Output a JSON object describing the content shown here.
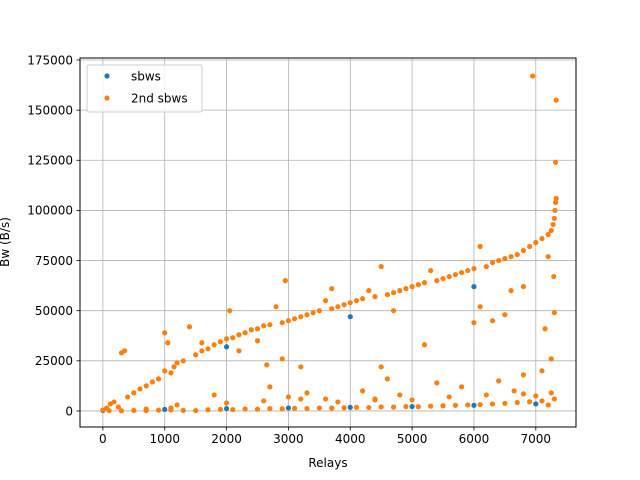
{
  "chart_data": {
    "type": "scatter",
    "title": "",
    "xlabel": "Relays",
    "ylabel": "Bw (B/s)",
    "xlim": [
      -370,
      7650
    ],
    "ylim": [
      -8000,
      176000
    ],
    "xticks": [
      0,
      1000,
      2000,
      3000,
      4000,
      5000,
      6000,
      7000
    ],
    "yticks": [
      0,
      25000,
      50000,
      75000,
      100000,
      125000,
      150000,
      175000
    ],
    "grid": true,
    "legend_position": "top-left",
    "series": [
      {
        "name": "sbws",
        "color": "#1f77b4",
        "points": [
          [
            0,
            200
          ],
          [
            1000,
            800
          ],
          [
            2000,
            1200
          ],
          [
            3000,
            1500
          ],
          [
            4000,
            1800
          ],
          [
            5000,
            2200
          ],
          [
            6000,
            2800
          ],
          [
            7000,
            3500
          ],
          [
            2000,
            32000
          ],
          [
            4000,
            47000
          ],
          [
            6000,
            62000
          ]
        ]
      },
      {
        "name": "2nd sbws",
        "color": "#ff7f0e",
        "points": [
          [
            0,
            500
          ],
          [
            60,
            1500
          ],
          [
            120,
            3500
          ],
          [
            180,
            4500
          ],
          [
            250,
            2000
          ],
          [
            300,
            29000
          ],
          [
            350,
            30000
          ],
          [
            400,
            7000
          ],
          [
            500,
            9000
          ],
          [
            600,
            11000
          ],
          [
            700,
            12500
          ],
          [
            800,
            14500
          ],
          [
            900,
            16000
          ],
          [
            1000,
            39000
          ],
          [
            1000,
            20000
          ],
          [
            1050,
            34000
          ],
          [
            1100,
            19000
          ],
          [
            1150,
            22000
          ],
          [
            1200,
            24000
          ],
          [
            1300,
            25000
          ],
          [
            1400,
            42000
          ],
          [
            1500,
            28000
          ],
          [
            1600,
            30000
          ],
          [
            1700,
            31000
          ],
          [
            1800,
            33000
          ],
          [
            1900,
            34500
          ],
          [
            2000,
            36000
          ],
          [
            2050,
            50000
          ],
          [
            2100,
            36500
          ],
          [
            2200,
            38000
          ],
          [
            2300,
            39000
          ],
          [
            2400,
            40500
          ],
          [
            2500,
            41000
          ],
          [
            2600,
            42500
          ],
          [
            2700,
            43000
          ],
          [
            2800,
            52000
          ],
          [
            2900,
            44000
          ],
          [
            2950,
            65000
          ],
          [
            3000,
            45000
          ],
          [
            3100,
            46000
          ],
          [
            3200,
            47000
          ],
          [
            3300,
            48000
          ],
          [
            3400,
            49000
          ],
          [
            3500,
            50000
          ],
          [
            3600,
            55000
          ],
          [
            3700,
            51000
          ],
          [
            3800,
            52000
          ],
          [
            3900,
            53000
          ],
          [
            4000,
            54000
          ],
          [
            4100,
            55000
          ],
          [
            4200,
            56000
          ],
          [
            4300,
            60000
          ],
          [
            4400,
            57000
          ],
          [
            4500,
            72000
          ],
          [
            4600,
            58000
          ],
          [
            4700,
            59000
          ],
          [
            4800,
            60000
          ],
          [
            4900,
            61000
          ],
          [
            5000,
            62000
          ],
          [
            5100,
            63000
          ],
          [
            5200,
            64000
          ],
          [
            5300,
            70000
          ],
          [
            5400,
            65000
          ],
          [
            5500,
            66000
          ],
          [
            5600,
            67000
          ],
          [
            5700,
            68000
          ],
          [
            5800,
            69000
          ],
          [
            5900,
            70000
          ],
          [
            6000,
            71000
          ],
          [
            6100,
            82000
          ],
          [
            6200,
            72000
          ],
          [
            6300,
            74000
          ],
          [
            6400,
            75000
          ],
          [
            6500,
            76000
          ],
          [
            6600,
            77000
          ],
          [
            6700,
            78000
          ],
          [
            6800,
            80000
          ],
          [
            6900,
            82000
          ],
          [
            6950,
            167000
          ],
          [
            7000,
            84000
          ],
          [
            7100,
            86000
          ],
          [
            7200,
            88000
          ],
          [
            7250,
            90000
          ],
          [
            7280,
            93000
          ],
          [
            7300,
            96000
          ],
          [
            7310,
            100000
          ],
          [
            7320,
            104000
          ],
          [
            7330,
            106000
          ],
          [
            7320,
            124000
          ],
          [
            7330,
            155000
          ],
          [
            7300,
            49000
          ],
          [
            7290,
            67000
          ],
          [
            7200,
            77000
          ],
          [
            7150,
            41000
          ],
          [
            7250,
            26000
          ],
          [
            7100,
            20000
          ],
          [
            6800,
            62000
          ],
          [
            6600,
            60000
          ],
          [
            6000,
            44000
          ],
          [
            6100,
            52000
          ],
          [
            6500,
            48000
          ],
          [
            6300,
            45000
          ],
          [
            5200,
            33000
          ],
          [
            4700,
            50000
          ],
          [
            4500,
            22000
          ],
          [
            3200,
            22000
          ],
          [
            3300,
            9000
          ],
          [
            2700,
            12000
          ],
          [
            2650,
            23000
          ],
          [
            1800,
            8000
          ],
          [
            2900,
            26000
          ],
          [
            1600,
            34000
          ],
          [
            2200,
            30000
          ],
          [
            3700,
            61000
          ],
          [
            2500,
            35000
          ],
          [
            100,
            200
          ],
          [
            300,
            100
          ],
          [
            500,
            300
          ],
          [
            700,
            200
          ],
          [
            900,
            400
          ],
          [
            1100,
            500
          ],
          [
            1300,
            300
          ],
          [
            1500,
            200
          ],
          [
            1700,
            600
          ],
          [
            1900,
            800
          ],
          [
            2100,
            700
          ],
          [
            2300,
            1000
          ],
          [
            2500,
            900
          ],
          [
            2700,
            1200
          ],
          [
            2900,
            1100
          ],
          [
            3100,
            1300
          ],
          [
            3300,
            1200
          ],
          [
            3500,
            1500
          ],
          [
            3700,
            1400
          ],
          [
            3900,
            1600
          ],
          [
            4100,
            1800
          ],
          [
            4300,
            1700
          ],
          [
            4500,
            2000
          ],
          [
            4700,
            1900
          ],
          [
            4900,
            2200
          ],
          [
            5100,
            2100
          ],
          [
            5300,
            2400
          ],
          [
            5500,
            2600
          ],
          [
            5700,
            2800
          ],
          [
            5900,
            3000
          ],
          [
            6100,
            3200
          ],
          [
            6300,
            3500
          ],
          [
            6500,
            3800
          ],
          [
            6700,
            4200
          ],
          [
            6900,
            4600
          ],
          [
            7100,
            5000
          ],
          [
            7300,
            6000
          ],
          [
            1200,
            3000
          ],
          [
            2000,
            4000
          ],
          [
            2600,
            5000
          ],
          [
            3200,
            6000
          ],
          [
            3800,
            4500
          ],
          [
            4400,
            6000
          ],
          [
            5000,
            5500
          ],
          [
            5600,
            7000
          ],
          [
            6200,
            8000
          ],
          [
            6800,
            8500
          ],
          [
            7250,
            9000
          ],
          [
            4200,
            10000
          ],
          [
            4400,
            5500
          ],
          [
            4800,
            8000
          ],
          [
            5400,
            14000
          ],
          [
            6400,
            15000
          ],
          [
            6800,
            18000
          ],
          [
            5800,
            12000
          ],
          [
            4600,
            16000
          ],
          [
            3600,
            6000
          ],
          [
            3000,
            7000
          ],
          [
            6650,
            10000
          ],
          [
            7000,
            7500
          ],
          [
            7200,
            3000
          ],
          [
            1100,
            1500
          ],
          [
            700,
            1000
          ]
        ]
      }
    ]
  }
}
